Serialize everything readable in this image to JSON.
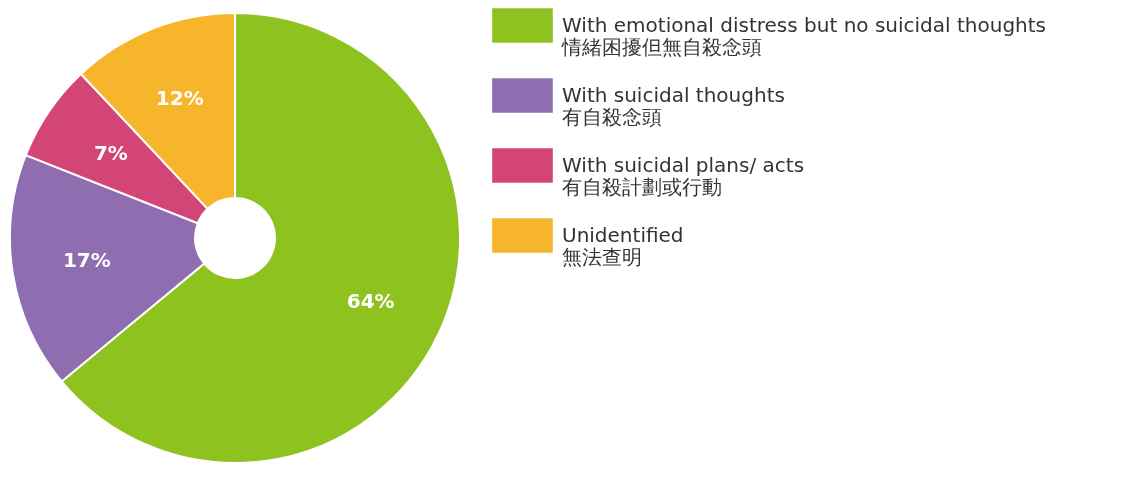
{
  "chart_data": {
    "type": "donut",
    "categories": [
      "With emotional distress but no suicidal thoughts\n情緒困擾但無自殺念頭",
      "With suicidal thoughts\n有自殺念頭",
      "With suicidal plans/ acts\n有自殺計劃或行動",
      "Unidentified\n無法查明"
    ],
    "values": [
      64,
      17,
      7,
      12
    ],
    "colors": [
      "#8dc21f",
      "#8e6db0",
      "#d44577",
      "#f7b52c"
    ],
    "value_labels": [
      "64%",
      "17%",
      "7%",
      "12%"
    ],
    "legend": "right"
  }
}
